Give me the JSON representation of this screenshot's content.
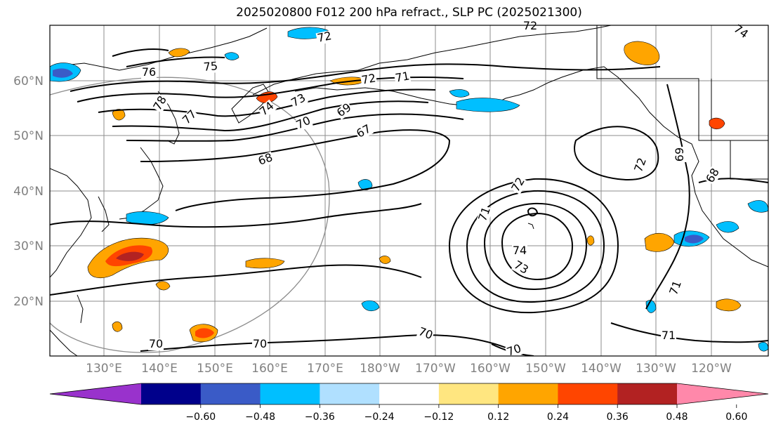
{
  "title": "2025020800 F012 200 hPa refract., SLP PC (2025021300)",
  "map": {
    "lat_labels": [
      "60°N",
      "50°N",
      "40°N",
      "30°N",
      "20°N"
    ],
    "lon_labels": [
      "130°E",
      "140°E",
      "150°E",
      "160°E",
      "170°E",
      "180°W",
      "170°W",
      "160°W",
      "150°W",
      "140°W",
      "130°W",
      "120°W"
    ],
    "contour_labels": [
      "72",
      "72",
      "74",
      "75",
      "76",
      "77",
      "78",
      "74",
      "73",
      "72",
      "71",
      "69",
      "70",
      "67",
      "68",
      "72",
      "69",
      "68",
      "72",
      "71",
      "74",
      "73",
      "71",
      "71",
      "70",
      "70",
      "70",
      "70"
    ],
    "colors": {
      "land_line": "#000000",
      "grid": "#8c8c8c",
      "ocean": "#ffffff"
    }
  },
  "colorbar": {
    "ticks": [
      "−0.60",
      "−0.48",
      "−0.36",
      "−0.24",
      "−0.12",
      "0.12",
      "0.24",
      "0.36",
      "0.48",
      "0.60"
    ],
    "colors": [
      "#9932cc",
      "#00008b",
      "#3a5bc7",
      "#00bfff",
      "#b0e0ff",
      "#ffffff",
      "#ffe680",
      "#ffa500",
      "#ff4500",
      "#b22222",
      "#ff88aa"
    ]
  }
}
